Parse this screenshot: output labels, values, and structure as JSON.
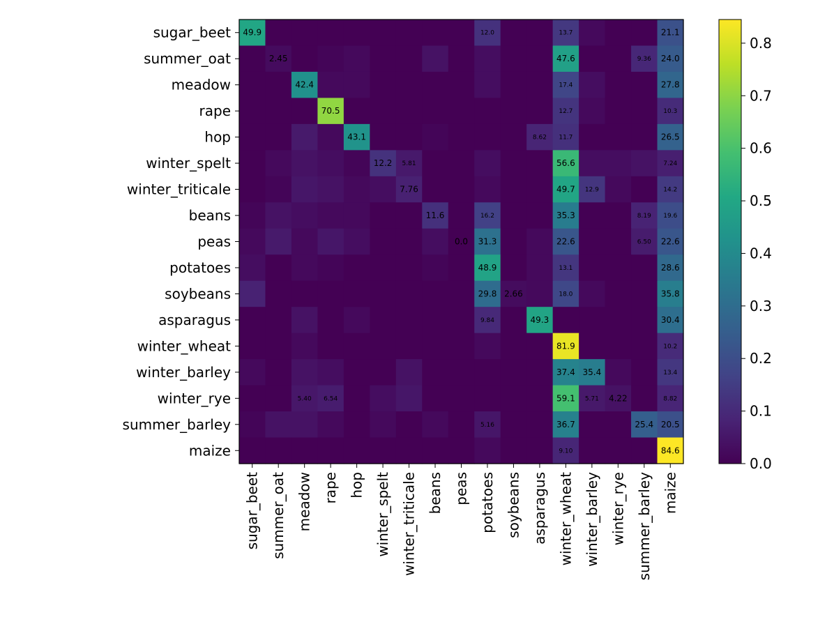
{
  "chart_data": {
    "type": "heatmap",
    "title": "",
    "xlabel": "",
    "ylabel": "",
    "rows": [
      "sugar_beet",
      "summer_oat",
      "meadow",
      "rape",
      "hop",
      "winter_spelt",
      "winter_triticale",
      "beans",
      "peas",
      "potatoes",
      "soybeans",
      "asparagus",
      "winter_wheat",
      "winter_barley",
      "winter_rye",
      "summer_barley",
      "maize"
    ],
    "columns": [
      "sugar_beet",
      "summer_oat",
      "meadow",
      "rape",
      "hop",
      "winter_spelt",
      "winter_triticale",
      "beans",
      "peas",
      "potatoes",
      "soybeans",
      "asparagus",
      "winter_wheat",
      "winter_barley",
      "winter_rye",
      "summer_barley",
      "maize"
    ],
    "values": [
      [
        0.499,
        0,
        0,
        0,
        0,
        0,
        0,
        0,
        0,
        0.12,
        0,
        0,
        0.137,
        0.02,
        0,
        0,
        0.211
      ],
      [
        0,
        0.0245,
        0,
        0.01,
        0.02,
        0,
        0,
        0.04,
        0,
        0.03,
        0,
        0,
        0.476,
        0,
        0,
        0.0936,
        0.24
      ],
      [
        0,
        0,
        0.424,
        0.02,
        0.02,
        0,
        0,
        0,
        0,
        0.03,
        0,
        0,
        0.174,
        0.03,
        0,
        0,
        0.278
      ],
      [
        0,
        0,
        0,
        0.705,
        0,
        0,
        0,
        0,
        0,
        0,
        0,
        0,
        0.127,
        0.02,
        0,
        0,
        0.103
      ],
      [
        0,
        0,
        0.06,
        0.02,
        0.431,
        0,
        0,
        0.01,
        0,
        0,
        0,
        0.0862,
        0.117,
        0,
        0,
        0,
        0.265
      ],
      [
        0,
        0.02,
        0.04,
        0.03,
        0.01,
        0.122,
        0.0581,
        0,
        0,
        0.03,
        0,
        0,
        0.566,
        0.03,
        0.03,
        0.04,
        0.0724
      ],
      [
        0,
        0.01,
        0.05,
        0.04,
        0.02,
        0.03,
        0.0776,
        0,
        0,
        0.02,
        0,
        0,
        0.497,
        0.129,
        0.02,
        0,
        0.142
      ],
      [
        0.01,
        0.04,
        0.03,
        0.02,
        0.02,
        0,
        0,
        0.116,
        0,
        0.162,
        0,
        0,
        0.353,
        0,
        0,
        0.0819,
        0.196
      ],
      [
        0.02,
        0.06,
        0.02,
        0.05,
        0.03,
        0,
        0,
        0.03,
        0,
        0.313,
        0,
        0.02,
        0.226,
        0,
        0,
        0.065,
        0.226
      ],
      [
        0.03,
        0,
        0.02,
        0.01,
        0,
        0,
        0,
        0.01,
        0,
        0.489,
        0,
        0.02,
        0.131,
        0,
        0,
        0,
        0.286
      ],
      [
        0.08,
        0,
        0,
        0,
        0,
        0,
        0,
        0,
        0,
        0.298,
        0.0266,
        0.02,
        0.18,
        0.02,
        0,
        0,
        0.358
      ],
      [
        0,
        0,
        0.04,
        0,
        0.02,
        0,
        0,
        0,
        0,
        0.0984,
        0,
        0.493,
        0,
        0,
        0,
        0,
        0.304
      ],
      [
        0,
        0,
        0.02,
        0,
        0,
        0,
        0,
        0,
        0,
        0.02,
        0,
        0,
        0.819,
        0,
        0,
        0,
        0.102
      ],
      [
        0.02,
        0,
        0.04,
        0.03,
        0,
        0,
        0.04,
        0,
        0,
        0,
        0,
        0,
        0.374,
        0.354,
        0.02,
        0,
        0.134
      ],
      [
        0,
        0,
        0.054,
        0.0654,
        0,
        0.03,
        0.05,
        0,
        0,
        0,
        0,
        0,
        0.591,
        0.0571,
        0.0422,
        0,
        0.0882
      ],
      [
        0.01,
        0.04,
        0.04,
        0.02,
        0,
        0.02,
        0,
        0.02,
        0,
        0.0516,
        0,
        0,
        0.367,
        0,
        0,
        0.254,
        0.205
      ],
      [
        0,
        0,
        0,
        0,
        0,
        0,
        0,
        0,
        0,
        0.02,
        0,
        0,
        0.091,
        0,
        0,
        0,
        0.846
      ]
    ],
    "annotations": [
      [
        "49.9",
        "",
        "",
        "",
        "",
        "",
        "",
        "",
        "",
        "12.0",
        "",
        "",
        "13.7",
        "",
        "",
        "",
        "21.1"
      ],
      [
        "",
        "2.45",
        "",
        "",
        "",
        "",
        "",
        "",
        "",
        "",
        "",
        "",
        "47.6",
        "",
        "",
        "9.36",
        "24.0"
      ],
      [
        "",
        "",
        "42.4",
        "",
        "",
        "",
        "",
        "",
        "",
        "",
        "",
        "",
        "17.4",
        "",
        "",
        "",
        "27.8"
      ],
      [
        "",
        "",
        "",
        "70.5",
        "",
        "",
        "",
        "",
        "",
        "",
        "",
        "",
        "12.7",
        "",
        "",
        "",
        "10.3"
      ],
      [
        "",
        "",
        "",
        "",
        "43.1",
        "",
        "",
        "",
        "",
        "",
        "",
        "8.62",
        "11.7",
        "",
        "",
        "",
        "26.5"
      ],
      [
        "",
        "",
        "",
        "",
        "",
        "12.2",
        "5.81",
        "",
        "",
        "",
        "",
        "",
        "56.6",
        "",
        "",
        "",
        "7.24"
      ],
      [
        "",
        "",
        "",
        "",
        "",
        "",
        "7.76",
        "",
        "",
        "",
        "",
        "",
        "49.7",
        "12.9",
        "",
        "",
        "14.2"
      ],
      [
        "",
        "",
        "",
        "",
        "",
        "",
        "",
        "11.6",
        "",
        "16.2",
        "",
        "",
        "35.3",
        "",
        "",
        "8.19",
        "19.6"
      ],
      [
        "",
        "",
        "",
        "",
        "",
        "",
        "",
        "",
        "0.0",
        "31.3",
        "",
        "",
        "22.6",
        "",
        "",
        "6.50",
        "22.6"
      ],
      [
        "",
        "",
        "",
        "",
        "",
        "",
        "",
        "",
        "",
        "48.9",
        "",
        "",
        "13.1",
        "",
        "",
        "",
        "28.6"
      ],
      [
        "",
        "",
        "",
        "",
        "",
        "",
        "",
        "",
        "",
        "29.8",
        "2.66",
        "",
        "18.0",
        "",
        "",
        "",
        "35.8"
      ],
      [
        "",
        "",
        "",
        "",
        "",
        "",
        "",
        "",
        "",
        "9.84",
        "",
        "49.3",
        "",
        "",
        "",
        "",
        "30.4"
      ],
      [
        "",
        "",
        "",
        "",
        "",
        "",
        "",
        "",
        "",
        "",
        "",
        "",
        "81.9",
        "",
        "",
        "",
        "10.2"
      ],
      [
        "",
        "",
        "",
        "",
        "",
        "",
        "",
        "",
        "",
        "",
        "",
        "",
        "37.4",
        "35.4",
        "",
        "",
        "13.4"
      ],
      [
        "",
        "",
        "5.40",
        "6.54",
        "",
        "",
        "",
        "",
        "",
        "",
        "",
        "",
        "59.1",
        "5.71",
        "4.22",
        "",
        "8.82"
      ],
      [
        "",
        "",
        "",
        "",
        "",
        "",
        "",
        "",
        "",
        "5.16",
        "",
        "",
        "36.7",
        "",
        "",
        "25.4",
        "20.5"
      ],
      [
        "",
        "",
        "",
        "",
        "",
        "",
        "",
        "",
        "",
        "",
        "",
        "",
        "9.10",
        "",
        "",
        "",
        "84.6"
      ]
    ],
    "colorbar": {
      "min": 0.0,
      "max": 0.845,
      "ticks": [
        "0.0",
        "0.1",
        "0.2",
        "0.3",
        "0.4",
        "0.5",
        "0.6",
        "0.7",
        "0.8"
      ],
      "colormap": "viridis"
    }
  }
}
